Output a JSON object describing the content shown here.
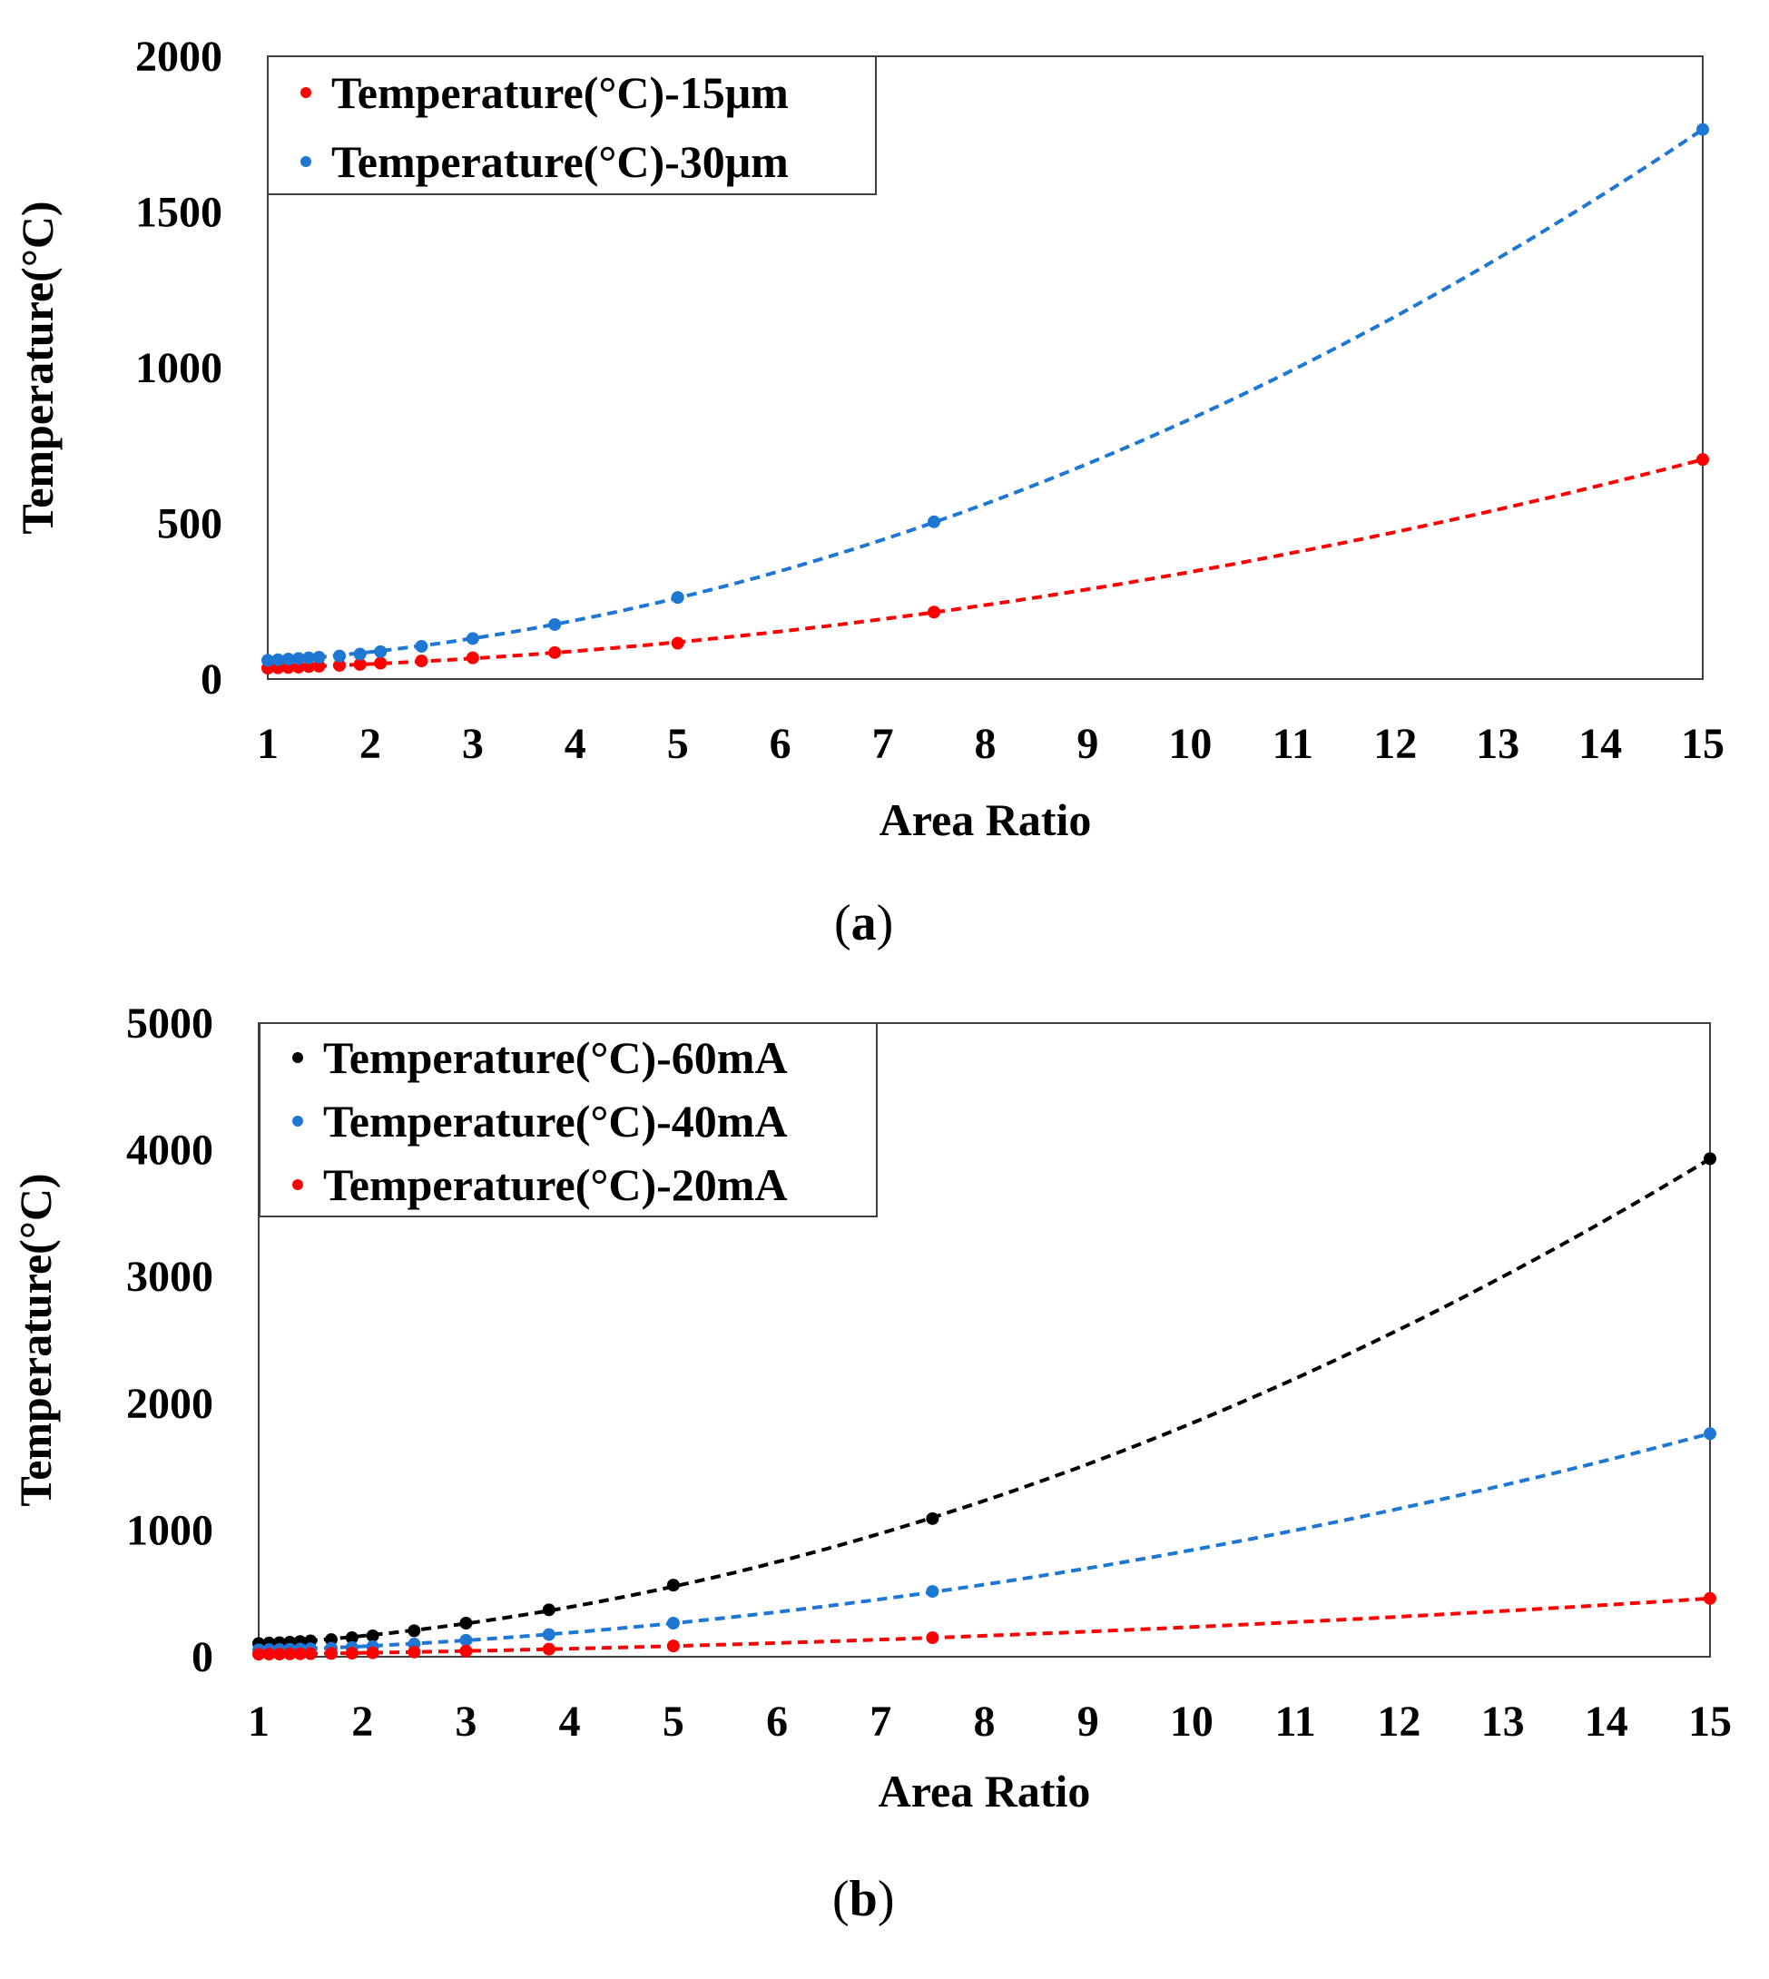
{
  "chart_data": [
    {
      "panel_label": "a",
      "type": "scatter",
      "xlabel": "Area Ratio",
      "ylabel": "Temperature(°C)",
      "xlim": [
        1,
        15
      ],
      "ylim": [
        0,
        2000
      ],
      "xticks": [
        1,
        2,
        3,
        4,
        5,
        6,
        7,
        8,
        9,
        10,
        11,
        12,
        13,
        14,
        15
      ],
      "yticks": [
        0,
        500,
        1000,
        1500,
        2000
      ],
      "legend_position": "top-left",
      "grid": false,
      "trendline": "polynomial-dashed",
      "series": [
        {
          "name": "Temperature(°C)-15μm",
          "color": "#ff0000",
          "x": [
            1.0,
            1.1,
            1.2,
            1.3,
            1.4,
            1.5,
            1.7,
            1.9,
            2.1,
            2.5,
            3.0,
            3.8,
            5.0,
            7.5,
            15.0
          ],
          "y": [
            35,
            36,
            37,
            38,
            40,
            41,
            44,
            47,
            51,
            58,
            68,
            85,
            115,
            215,
            705
          ]
        },
        {
          "name": "Temperature(°C)-30μm",
          "color": "#1f77d4",
          "x": [
            1.0,
            1.1,
            1.2,
            1.3,
            1.4,
            1.5,
            1.7,
            1.9,
            2.1,
            2.5,
            3.0,
            3.8,
            5.0,
            7.5,
            15.0
          ],
          "y": [
            60,
            62,
            64,
            66,
            68,
            70,
            74,
            80,
            88,
            105,
            130,
            175,
            262,
            505,
            1765
          ]
        }
      ]
    },
    {
      "panel_label": "b",
      "type": "scatter",
      "xlabel": "Area Ratio",
      "ylabel": "Temperature(°C)",
      "xlim": [
        1,
        15
      ],
      "ylim": [
        0,
        5000
      ],
      "xticks": [
        1,
        2,
        3,
        4,
        5,
        6,
        7,
        8,
        9,
        10,
        11,
        12,
        13,
        14,
        15
      ],
      "yticks": [
        0,
        1000,
        2000,
        3000,
        4000,
        5000
      ],
      "legend_position": "top-left",
      "grid": false,
      "trendline": "polynomial-dashed",
      "series": [
        {
          "name": "Temperature(°C)-60mA",
          "color": "#000000",
          "x": [
            1.0,
            1.1,
            1.2,
            1.3,
            1.4,
            1.5,
            1.7,
            1.9,
            2.1,
            2.5,
            3.0,
            3.8,
            5.0,
            7.5,
            15.0
          ],
          "y": [
            105,
            108,
            111,
            115,
            120,
            125,
            135,
            150,
            165,
            205,
            265,
            370,
            565,
            1090,
            3930
          ]
        },
        {
          "name": "Temperature(°C)-40mA",
          "color": "#1f77d4",
          "x": [
            1.0,
            1.1,
            1.2,
            1.3,
            1.4,
            1.5,
            1.7,
            1.9,
            2.1,
            2.5,
            3.0,
            3.8,
            5.0,
            7.5,
            15.0
          ],
          "y": [
            55,
            56,
            57,
            59,
            61,
            63,
            67,
            73,
            80,
            100,
            130,
            175,
            265,
            515,
            1760
          ]
        },
        {
          "name": "Temperature(°C)-20mA",
          "color": "#ff0000",
          "x": [
            1.0,
            1.1,
            1.2,
            1.3,
            1.4,
            1.5,
            1.7,
            1.9,
            2.1,
            2.5,
            3.0,
            3.8,
            5.0,
            7.5,
            15.0
          ],
          "y": [
            20,
            21,
            21,
            22,
            23,
            24,
            26,
            28,
            31,
            37,
            45,
            60,
            85,
            150,
            460
          ]
        }
      ]
    }
  ]
}
